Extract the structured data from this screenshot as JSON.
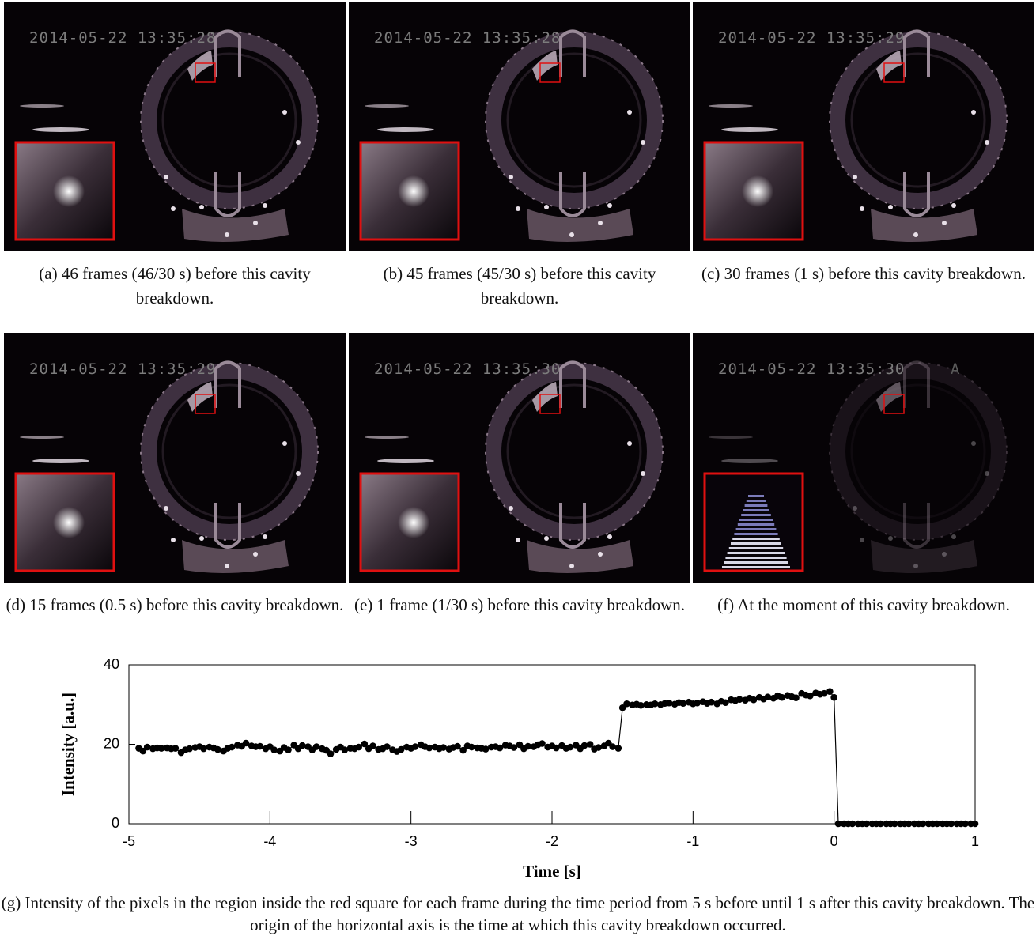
{
  "panels": [
    {
      "timestamp": "2014-05-22 13:35:28",
      "caption": "(a) 46 frames (46/30 s) before this cavity breakdown."
    },
    {
      "timestamp": "2014-05-22 13:35:28",
      "caption": "(b) 45 frames (45/30 s) before this cavity breakdown."
    },
    {
      "timestamp": "2014-05-22 13:35:29",
      "caption": "(c) 30 frames (1 s) before this cavity breakdown."
    },
    {
      "timestamp": "2014-05-22 13:35:29",
      "caption": "(d) 15 frames (0.5 s) before this cavity breakdown."
    },
    {
      "timestamp": "2014-05-22 13:35:30",
      "caption": "(e) 1 frame (1/30 s) before this cavity breakdown."
    },
    {
      "timestamp": "2014-05-22 13:35:30",
      "extra": "A",
      "caption": "(f) At the moment of this cavity breakdown."
    }
  ],
  "chart_data": {
    "type": "line",
    "xlabel": "Time [s]",
    "ylabel": "Intensity [a.u.]",
    "color": "#000000",
    "markers": true,
    "xlim": [
      -5,
      1
    ],
    "xticks": [
      -5,
      -4,
      -3,
      -2,
      -1,
      0,
      1
    ],
    "ylim": [
      0,
      40
    ],
    "yticks": [
      0,
      20,
      40
    ],
    "x": [
      -4.93,
      -4.9,
      -4.87,
      -4.83,
      -4.8,
      -4.77,
      -4.73,
      -4.7,
      -4.67,
      -4.63,
      -4.6,
      -4.57,
      -4.53,
      -4.5,
      -4.47,
      -4.43,
      -4.4,
      -4.37,
      -4.33,
      -4.3,
      -4.27,
      -4.23,
      -4.2,
      -4.17,
      -4.13,
      -4.1,
      -4.07,
      -4.03,
      -4,
      -3.97,
      -3.93,
      -3.9,
      -3.87,
      -3.83,
      -3.8,
      -3.77,
      -3.73,
      -3.7,
      -3.67,
      -3.63,
      -3.6,
      -3.57,
      -3.53,
      -3.5,
      -3.47,
      -3.43,
      -3.4,
      -3.37,
      -3.33,
      -3.3,
      -3.27,
      -3.23,
      -3.2,
      -3.17,
      -3.13,
      -3.1,
      -3.07,
      -3.03,
      -3,
      -2.97,
      -2.93,
      -2.9,
      -2.87,
      -2.83,
      -2.8,
      -2.77,
      -2.73,
      -2.7,
      -2.67,
      -2.63,
      -2.6,
      -2.57,
      -2.53,
      -2.5,
      -2.47,
      -2.43,
      -2.4,
      -2.37,
      -2.33,
      -2.3,
      -2.27,
      -2.23,
      -2.2,
      -2.17,
      -2.13,
      -2.1,
      -2.07,
      -2.03,
      -2,
      -1.97,
      -1.93,
      -1.9,
      -1.87,
      -1.83,
      -1.8,
      -1.77,
      -1.73,
      -1.7,
      -1.67,
      -1.63,
      -1.6,
      -1.57,
      -1.53,
      -1.5,
      -1.47,
      -1.43,
      -1.4,
      -1.37,
      -1.33,
      -1.3,
      -1.27,
      -1.23,
      -1.2,
      -1.17,
      -1.13,
      -1.1,
      -1.07,
      -1.03,
      -1,
      -0.97,
      -0.93,
      -0.9,
      -0.87,
      -0.83,
      -0.8,
      -0.77,
      -0.73,
      -0.7,
      -0.67,
      -0.63,
      -0.6,
      -0.57,
      -0.53,
      -0.5,
      -0.47,
      -0.43,
      -0.4,
      -0.37,
      -0.33,
      -0.3,
      -0.27,
      -0.23,
      -0.2,
      -0.17,
      -0.13,
      -0.1,
      -0.07,
      -0.03,
      0,
      0.03,
      0.07,
      0.1,
      0.13,
      0.17,
      0.2,
      0.23,
      0.27,
      0.3,
      0.33,
      0.37,
      0.4,
      0.43,
      0.47,
      0.5,
      0.53,
      0.57,
      0.6,
      0.63,
      0.67,
      0.7,
      0.73,
      0.77,
      0.8,
      0.83,
      0.87,
      0.9,
      0.93,
      0.97,
      1
    ],
    "values": [
      19.0,
      18.3,
      19.3,
      18.9,
      19.1,
      19.0,
      19.1,
      18.9,
      19.0,
      17.9,
      18.6,
      18.9,
      19.2,
      19.4,
      18.9,
      19.3,
      19.1,
      18.7,
      18.3,
      19.0,
      19.3,
      19.8,
      19.5,
      20.3,
      19.6,
      19.4,
      19.5,
      18.9,
      19.4,
      18.6,
      18.3,
      19.2,
      18.6,
      19.8,
      18.9,
      19.7,
      19.4,
      18.6,
      19.4,
      18.9,
      18.5,
      17.6,
      18.7,
      19.3,
      18.6,
      19.0,
      18.9,
      19.3,
      20.1,
      18.9,
      19.6,
      18.7,
      18.9,
      19.4,
      18.6,
      18.2,
      18.7,
      19.3,
      19.0,
      19.4,
      19.9,
      19.4,
      19.1,
      19.3,
      18.9,
      19.2,
      18.8,
      19.2,
      19.5,
      18.5,
      19.6,
      19.3,
      19.1,
      19.0,
      18.8,
      19.3,
      19.4,
      19.1,
      19.8,
      19.6,
      19.2,
      19.9,
      18.9,
      19.5,
      19.4,
      19.9,
      20.2,
      19.3,
      19.6,
      19.1,
      19.7,
      19.0,
      19.3,
      19.8,
      18.9,
      19.7,
      20.0,
      18.8,
      19.2,
      19.6,
      20.3,
      19.4,
      19.0,
      29.2,
      30.2,
      29.9,
      30.1,
      29.8,
      30.0,
      29.9,
      30.2,
      30.0,
      30.3,
      30.4,
      30.1,
      30.5,
      30.3,
      30.6,
      30.2,
      30.4,
      30.7,
      30.3,
      30.6,
      30.2,
      30.8,
      30.5,
      31.2,
      31.0,
      31.3,
      31.1,
      31.6,
      31.2,
      31.8,
      31.4,
      31.9,
      31.6,
      32.2,
      31.8,
      32.3,
      32.0,
      31.7,
      32.8,
      32.4,
      32.2,
      32.9,
      32.6,
      32.8,
      33.3,
      31.8,
      0,
      0,
      0,
      0,
      0,
      0,
      0,
      0,
      0,
      0,
      0,
      0,
      0,
      0,
      0,
      0,
      0,
      0,
      0,
      0,
      0,
      0,
      0,
      0,
      0,
      0,
      0,
      0,
      0,
      0
    ]
  },
  "figure_caption": "(g) Intensity of the pixels in the region inside the red square for each frame during the time period from 5 s before until 1 s after this cavity breakdown. The origin of the horizontal axis is the time at which this cavity breakdown occurred."
}
